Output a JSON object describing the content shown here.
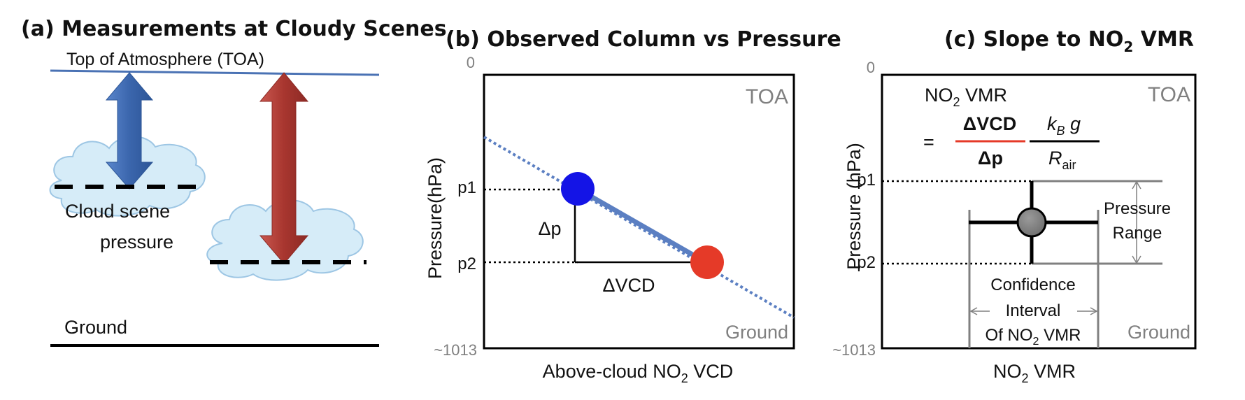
{
  "panel_a": {
    "title": "(a) Measurements at Cloudy Scenes",
    "toa_label": "Top of Atmosphere (TOA)",
    "cloud_label_line1": "Cloud scene",
    "cloud_label_line2": "pressure",
    "ground_label": "Ground"
  },
  "panel_b": {
    "title": "(b) Observed Column vs Pressure",
    "y_top_tick": "0",
    "y_bottom_tick": "~1013",
    "p1_label": "p1",
    "p2_label": "p2",
    "ylabel": "Pressure(hPa)",
    "xlabel_prefix": "Above-cloud  NO",
    "xlabel_sub": "2",
    "xlabel_suffix": " VCD",
    "toa_label": "TOA",
    "ground_label": "Ground",
    "dp_label": "Δp",
    "dvcd_label": "ΔVCD"
  },
  "panel_c": {
    "title_prefix": "(c) Slope to NO",
    "title_sub": "2",
    "title_suffix": " VMR",
    "y_top_tick": "0",
    "y_bottom_tick": "~1013",
    "p1_label": "p1",
    "p2_label": "p2",
    "ylabel": "Pressure (hPa)",
    "xlabel_prefix": "NO",
    "xlabel_sub": "2",
    "xlabel_suffix": " VMR",
    "toa_label": "TOA",
    "ground_label": "Ground",
    "formula_head_prefix": "NO",
    "formula_head_sub": "2",
    "formula_head_suffix": " VMR",
    "equals": "=",
    "frac1_num": "ΔVCD",
    "frac1_den": "Δp",
    "frac2_num_k": "k",
    "frac2_num_ksub": "B",
    "frac2_num_g": " g",
    "frac2_den_r": "R",
    "frac2_den_rsub": "air",
    "pressure_range_line1": "Pressure",
    "pressure_range_line2": "Range",
    "ci_line1": "Confidence",
    "ci_line2": "Interval",
    "ci_line3_prefix": "Of NO",
    "ci_line3_sub": "2",
    "ci_line3_suffix": " VMR"
  },
  "colors": {
    "toa_line": "#4a72b4",
    "blue_arrow": "#3e6db5",
    "red_arrow": "#b03a34",
    "cloud_fill": "#d6ecf8",
    "cloud_stroke": "#9dc6e4",
    "slope_line": "#5b7fc2",
    "blue_point": "#1414e6",
    "red_point": "#e53a28",
    "formula_red": "#e53a28"
  }
}
